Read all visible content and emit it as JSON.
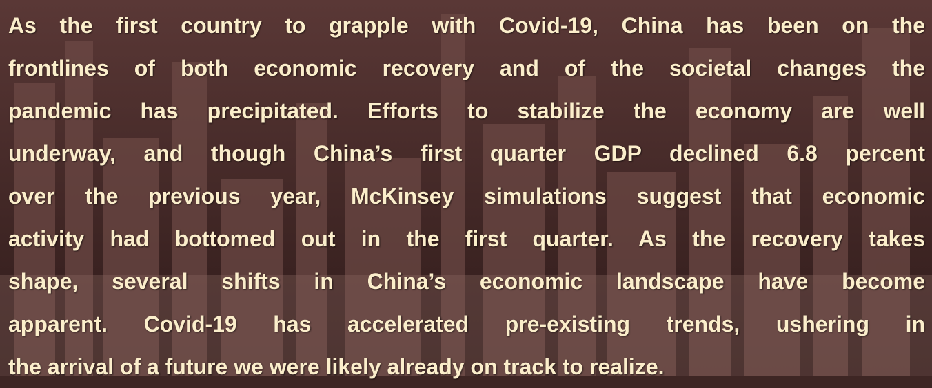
{
  "paragraph": {
    "lines": [
      "As the first country to grapple with Covid-19, China has been on the",
      "frontlines of both economic recovery and of the societal changes the",
      "pandemic has precipitated. Efforts to stabilize the economy are well",
      "underway, and though China’s first quarter GDP declined 6.8 percent",
      "over the previous year, McKinsey simulations suggest that economic",
      "activity had bottomed out in the first quarter. As the recovery takes",
      "shape, several shifts in China’s economic landscape have become",
      "apparent.  Covid-19 has accelerated pre-existing trends, ushering  in",
      "the arrival of a future we were likely already on track to realize."
    ]
  }
}
